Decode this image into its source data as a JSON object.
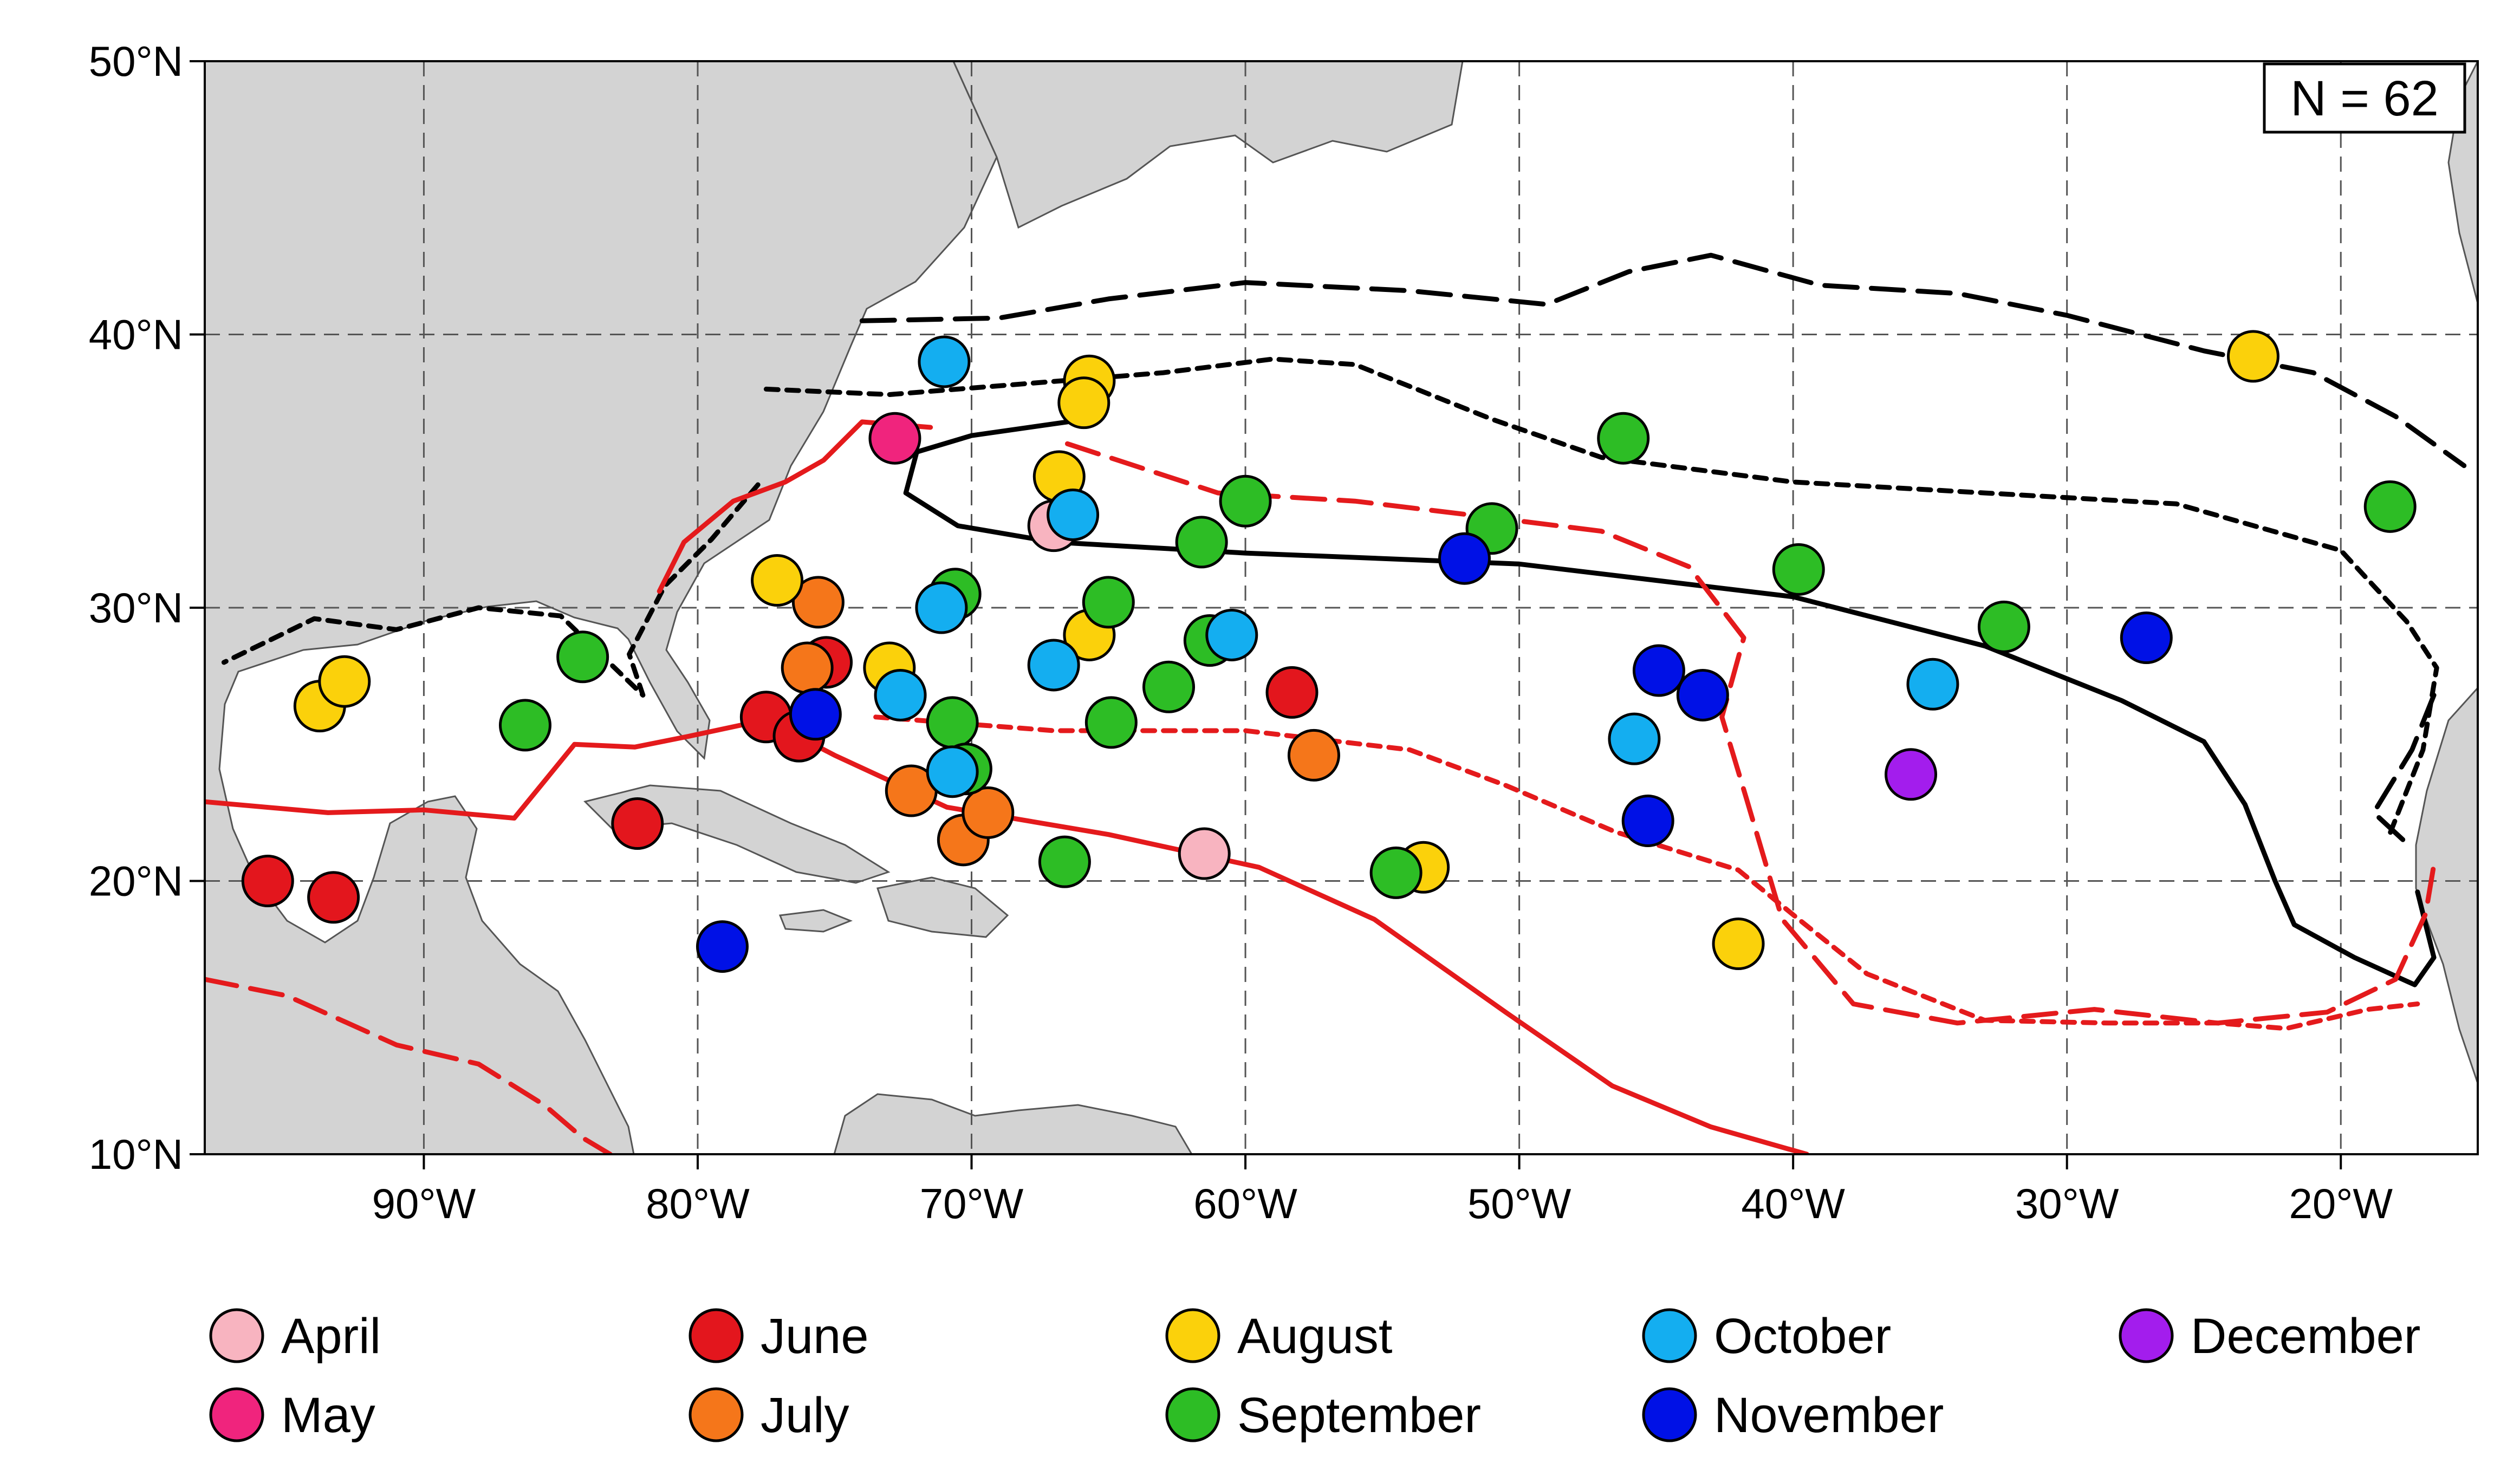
{
  "map": {
    "extent": {
      "lon_min": -98,
      "lon_max": -15,
      "lat_min": 10,
      "lat_max": 50
    },
    "lat_ticks": [
      10,
      20,
      30,
      40,
      50
    ],
    "lon_ticks": [
      -90,
      -80,
      -70,
      -60,
      -50,
      -40,
      -30,
      -20
    ],
    "lat_labels": [
      "10°N",
      "20°N",
      "30°N",
      "40°N",
      "50°N"
    ],
    "lon_labels": [
      "90°W",
      "80°W",
      "70°W",
      "60°W",
      "50°W",
      "40°W",
      "30°W",
      "20°W"
    ],
    "grid": true,
    "colors": {
      "land": "#d3d3d3",
      "ocean": "#ffffff",
      "contour_black": "#000000",
      "contour_red": "#e41a1c"
    },
    "count_label": "N = 62"
  },
  "months": [
    {
      "key": "april",
      "label": "April",
      "color": "#f8b4c0"
    },
    {
      "key": "may",
      "label": "May",
      "color": "#f0247d"
    },
    {
      "key": "june",
      "label": "June",
      "color": "#e3161d"
    },
    {
      "key": "july",
      "label": "July",
      "color": "#f5761a"
    },
    {
      "key": "august",
      "label": "August",
      "color": "#fbd10b"
    },
    {
      "key": "september",
      "label": "September",
      "color": "#2dbd25"
    },
    {
      "key": "october",
      "label": "October",
      "color": "#14aef0"
    },
    {
      "key": "november",
      "label": "November",
      "color": "#0011e6"
    },
    {
      "key": "december",
      "label": "December",
      "color": "#a31ded"
    }
  ],
  "points": [
    {
      "lon": -67.0,
      "lat": 33.0,
      "month": "april"
    },
    {
      "lon": -61.5,
      "lat": 21.0,
      "month": "april"
    },
    {
      "lon": -72.8,
      "lat": 36.2,
      "month": "may"
    },
    {
      "lon": -95.7,
      "lat": 20.0,
      "month": "june"
    },
    {
      "lon": -93.3,
      "lat": 19.4,
      "month": "june"
    },
    {
      "lon": -82.2,
      "lat": 22.1,
      "month": "june"
    },
    {
      "lon": -77.5,
      "lat": 26.0,
      "month": "june"
    },
    {
      "lon": -76.3,
      "lat": 25.3,
      "month": "june"
    },
    {
      "lon": -75.3,
      "lat": 28.0,
      "month": "june"
    },
    {
      "lon": -58.3,
      "lat": 26.9,
      "month": "june"
    },
    {
      "lon": -76.0,
      "lat": 27.8,
      "month": "july"
    },
    {
      "lon": -75.6,
      "lat": 30.2,
      "month": "july"
    },
    {
      "lon": -72.2,
      "lat": 23.3,
      "month": "july"
    },
    {
      "lon": -70.3,
      "lat": 21.5,
      "month": "july"
    },
    {
      "lon": -69.4,
      "lat": 22.5,
      "month": "july"
    },
    {
      "lon": -57.5,
      "lat": 24.6,
      "month": "july"
    },
    {
      "lon": -93.8,
      "lat": 26.4,
      "month": "august"
    },
    {
      "lon": -92.9,
      "lat": 27.3,
      "month": "august"
    },
    {
      "lon": -77.1,
      "lat": 31.0,
      "month": "august"
    },
    {
      "lon": -73.0,
      "lat": 27.8,
      "month": "august"
    },
    {
      "lon": -66.8,
      "lat": 34.8,
      "month": "august"
    },
    {
      "lon": -65.7,
      "lat": 38.3,
      "month": "august"
    },
    {
      "lon": -65.9,
      "lat": 37.5,
      "month": "august"
    },
    {
      "lon": -65.7,
      "lat": 29.0,
      "month": "august"
    },
    {
      "lon": -53.5,
      "lat": 20.5,
      "month": "august"
    },
    {
      "lon": -42.0,
      "lat": 17.7,
      "month": "august"
    },
    {
      "lon": -23.2,
      "lat": 39.2,
      "month": "august"
    },
    {
      "lon": -86.3,
      "lat": 25.7,
      "month": "september"
    },
    {
      "lon": -84.2,
      "lat": 28.2,
      "month": "september"
    },
    {
      "lon": -70.6,
      "lat": 30.5,
      "month": "september"
    },
    {
      "lon": -70.7,
      "lat": 25.8,
      "month": "september"
    },
    {
      "lon": -70.2,
      "lat": 24.1,
      "month": "september"
    },
    {
      "lon": -66.6,
      "lat": 20.7,
      "month": "september"
    },
    {
      "lon": -65.0,
      "lat": 30.2,
      "month": "september"
    },
    {
      "lon": -64.9,
      "lat": 25.8,
      "month": "september"
    },
    {
      "lon": -62.8,
      "lat": 27.1,
      "month": "september"
    },
    {
      "lon": -61.6,
      "lat": 32.4,
      "month": "september"
    },
    {
      "lon": -61.3,
      "lat": 28.8,
      "month": "september"
    },
    {
      "lon": -60.0,
      "lat": 33.9,
      "month": "september"
    },
    {
      "lon": -54.5,
      "lat": 20.3,
      "month": "september"
    },
    {
      "lon": -51.0,
      "lat": 32.9,
      "month": "september"
    },
    {
      "lon": -46.2,
      "lat": 36.2,
      "month": "september"
    },
    {
      "lon": -39.8,
      "lat": 31.4,
      "month": "september"
    },
    {
      "lon": -32.3,
      "lat": 29.3,
      "month": "september"
    },
    {
      "lon": -18.2,
      "lat": 33.7,
      "month": "september"
    },
    {
      "lon": -71.0,
      "lat": 39.0,
      "month": "october"
    },
    {
      "lon": -71.1,
      "lat": 30.0,
      "month": "october"
    },
    {
      "lon": -72.6,
      "lat": 26.8,
      "month": "october"
    },
    {
      "lon": -70.7,
      "lat": 24.0,
      "month": "october"
    },
    {
      "lon": -67.0,
      "lat": 27.9,
      "month": "october"
    },
    {
      "lon": -66.3,
      "lat": 33.4,
      "month": "october"
    },
    {
      "lon": -60.5,
      "lat": 29.0,
      "month": "october"
    },
    {
      "lon": -45.8,
      "lat": 25.2,
      "month": "october"
    },
    {
      "lon": -34.9,
      "lat": 27.2,
      "month": "october"
    },
    {
      "lon": -79.1,
      "lat": 17.6,
      "month": "november"
    },
    {
      "lon": -75.7,
      "lat": 26.1,
      "month": "november"
    },
    {
      "lon": -52.0,
      "lat": 31.8,
      "month": "november"
    },
    {
      "lon": -44.9,
      "lat": 27.7,
      "month": "november"
    },
    {
      "lon": -43.3,
      "lat": 26.8,
      "month": "november"
    },
    {
      "lon": -45.3,
      "lat": 22.2,
      "month": "november"
    },
    {
      "lon": -27.1,
      "lat": 28.9,
      "month": "november"
    },
    {
      "lon": -35.7,
      "lat": 23.9,
      "month": "december"
    }
  ],
  "contours": [
    {
      "color": "black",
      "style": "long-dash",
      "points": [
        [
          -74,
          40.5
        ],
        [
          -69,
          40.6
        ],
        [
          -65,
          41.3
        ],
        [
          -60,
          41.9
        ],
        [
          -54,
          41.6
        ],
        [
          -49,
          41.1
        ],
        [
          -46,
          42.3
        ],
        [
          -43,
          42.9
        ],
        [
          -39,
          41.8
        ],
        [
          -34,
          41.5
        ],
        [
          -30,
          40.7
        ],
        [
          -25,
          39.4
        ],
        [
          -21,
          38.6
        ],
        [
          -18,
          37.0
        ],
        [
          -15.5,
          35.2
        ]
      ]
    },
    {
      "color": "black",
      "style": "short-dash",
      "points": [
        [
          -77.5,
          38.0
        ],
        [
          -73,
          37.8
        ],
        [
          -68,
          38.2
        ],
        [
          -63,
          38.6
        ],
        [
          -59,
          39.1
        ],
        [
          -56,
          38.9
        ],
        [
          -51,
          36.9
        ],
        [
          -47,
          35.5
        ],
        [
          -40,
          34.6
        ],
        [
          -33,
          34.2
        ],
        [
          -26,
          33.8
        ],
        [
          -20,
          32.1
        ],
        [
          -17.6,
          29.5
        ],
        [
          -16.5,
          27.8
        ],
        [
          -17,
          24.8
        ],
        [
          -18.3,
          21.5
        ]
      ]
    },
    {
      "color": "black",
      "style": "short-dash",
      "points": [
        [
          -77.8,
          34.5
        ],
        [
          -79.5,
          32.5
        ],
        [
          -81.2,
          30.8
        ],
        [
          -82.5,
          28.3
        ],
        [
          -82,
          26.8
        ],
        [
          -85,
          29.7
        ],
        [
          -88,
          30.0
        ],
        [
          -91,
          29.2
        ],
        [
          -94,
          29.6
        ],
        [
          -97.3,
          28.0
        ]
      ]
    },
    {
      "color": "black",
      "style": "long-dash",
      "points": [
        [
          -16.6,
          26.8
        ],
        [
          -17.4,
          24.8
        ],
        [
          -18.8,
          22.5
        ],
        [
          -17.4,
          21.2
        ]
      ]
    },
    {
      "color": "black",
      "style": "solid",
      "points": [
        [
          -66.5,
          36.8
        ],
        [
          -70,
          36.3
        ],
        [
          -72,
          35.7
        ],
        [
          -72.4,
          34.2
        ],
        [
          -70.5,
          33.0
        ],
        [
          -67,
          32.4
        ],
        [
          -60,
          32.0
        ],
        [
          -50,
          31.6
        ],
        [
          -40,
          30.4
        ],
        [
          -33,
          28.6
        ],
        [
          -28,
          26.6
        ],
        [
          -25,
          25.1
        ],
        [
          -23.5,
          22.8
        ],
        [
          -22.4,
          20.0
        ],
        [
          -21.7,
          18.4
        ],
        [
          -19.5,
          17.2
        ],
        [
          -17.3,
          16.2
        ],
        [
          -16.6,
          17.2
        ],
        [
          -17.2,
          19.6
        ]
      ]
    },
    {
      "color": "red",
      "style": "solid",
      "points": [
        [
          -98,
          22.9
        ],
        [
          -93.5,
          22.5
        ],
        [
          -90,
          22.6
        ],
        [
          -86.7,
          22.3
        ],
        [
          -84.5,
          25.0
        ],
        [
          -82.3,
          24.9
        ],
        [
          -80.3,
          25.3
        ],
        [
          -77.5,
          25.9
        ],
        [
          -75,
          24.6
        ],
        [
          -70.9,
          22.7
        ],
        [
          -65,
          21.7
        ],
        [
          -59.5,
          20.5
        ],
        [
          -55.3,
          18.6
        ],
        [
          -50.5,
          15.2
        ],
        [
          -46.6,
          12.5
        ],
        [
          -43,
          11.0
        ],
        [
          -39.5,
          10.0
        ]
      ]
    },
    {
      "color": "red",
      "style": "long-dash",
      "points": [
        [
          -66.5,
          36.0
        ],
        [
          -61,
          34.2
        ],
        [
          -56,
          33.9
        ],
        [
          -51,
          33.3
        ],
        [
          -47,
          32.8
        ],
        [
          -43.8,
          31.5
        ],
        [
          -41.8,
          28.9
        ],
        [
          -42.6,
          26.0
        ],
        [
          -41.7,
          23.0
        ],
        [
          -40.4,
          18.6
        ],
        [
          -37.8,
          15.5
        ],
        [
          -34,
          14.8
        ],
        [
          -29,
          15.3
        ],
        [
          -24.5,
          14.8
        ],
        [
          -20.5,
          15.2
        ],
        [
          -18.0,
          16.4
        ],
        [
          -16.9,
          18.8
        ],
        [
          -16.6,
          20.6
        ]
      ]
    },
    {
      "color": "red",
      "style": "short-dash",
      "points": [
        [
          -73.5,
          26.0
        ],
        [
          -67,
          25.5
        ],
        [
          -60,
          25.5
        ],
        [
          -54,
          24.8
        ],
        [
          -50.5,
          23.5
        ],
        [
          -46.5,
          21.8
        ],
        [
          -42,
          20.4
        ],
        [
          -39.8,
          18.6
        ],
        [
          -37.3,
          16.6
        ],
        [
          -33,
          14.9
        ],
        [
          -28.5,
          14.8
        ],
        [
          -24.5,
          14.8
        ],
        [
          -22,
          14.6
        ],
        [
          -19,
          15.3
        ],
        [
          -17.2,
          15.5
        ]
      ]
    },
    {
      "color": "red",
      "style": "solid",
      "points": [
        [
          -71.5,
          36.6
        ],
        [
          -74,
          36.8
        ],
        [
          -75.4,
          35.4
        ],
        [
          -76.8,
          34.6
        ],
        [
          -78.7,
          33.9
        ],
        [
          -80.5,
          32.4
        ],
        [
          -81.4,
          30.6
        ]
      ]
    },
    {
      "color": "red",
      "style": "long-dash",
      "points": [
        [
          -98,
          16.4
        ],
        [
          -95,
          15.8
        ],
        [
          -91,
          14.0
        ],
        [
          -88,
          13.3
        ],
        [
          -85.6,
          11.8
        ],
        [
          -84.2,
          10.6
        ],
        [
          -83.2,
          10.0
        ]
      ]
    }
  ]
}
